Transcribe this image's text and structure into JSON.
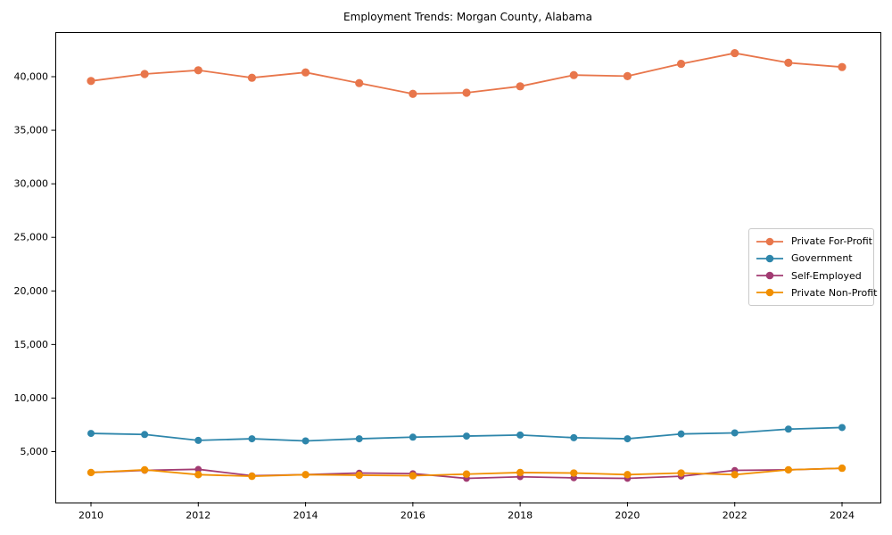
{
  "figure": {
    "title": "Employment Trends: Morgan County, Alabama",
    "background": "#ffffff"
  },
  "legend": {
    "position": "center-right",
    "items": [
      {
        "label": "Private For-Profit",
        "color": "#E8764B"
      },
      {
        "label": "Government",
        "color": "#2E86AB"
      },
      {
        "label": "Self-Employed",
        "color": "#A23B72"
      },
      {
        "label": "Private Non-Profit",
        "color": "#F18F01"
      }
    ]
  },
  "chart_data": {
    "type": "line",
    "title": "Employment Trends: Morgan County, Alabama",
    "xlabel": "",
    "ylabel": "",
    "grid": false,
    "legend_position": "center right",
    "x": [
      2010,
      2011,
      2012,
      2013,
      2014,
      2015,
      2016,
      2017,
      2018,
      2019,
      2020,
      2021,
      2022,
      2023,
      2024
    ],
    "x_tick_labels": [
      "2010",
      "2012",
      "2014",
      "2016",
      "2018",
      "2020",
      "2022",
      "2024"
    ],
    "x_ticks": [
      2010,
      2012,
      2014,
      2016,
      2018,
      2020,
      2022,
      2024
    ],
    "y_ticks": [
      5000,
      10000,
      15000,
      20000,
      25000,
      30000,
      35000,
      40000
    ],
    "y_tick_labels": [
      "5,000",
      "10,000",
      "15,000",
      "20,000",
      "25,000",
      "30,000",
      "35,000",
      "40,000"
    ],
    "xlim": [
      2009.3,
      2024.7
    ],
    "ylim": [
      255,
      44160
    ],
    "series": [
      {
        "name": "Private For-Profit",
        "color": "#E8764B",
        "marker": "circle",
        "values": [
          39600,
          40250,
          40600,
          39900,
          40400,
          39400,
          38400,
          38500,
          39100,
          40150,
          40050,
          41200,
          42200,
          41300,
          40900
        ]
      },
      {
        "name": "Government",
        "color": "#2E86AB",
        "marker": "circle",
        "values": [
          6700,
          6600,
          6050,
          6200,
          6000,
          6200,
          6350,
          6450,
          6550,
          6300,
          6200,
          6650,
          6750,
          7100,
          7250
        ]
      },
      {
        "name": "Self-Employed",
        "color": "#A23B72",
        "marker": "circle",
        "values": [
          3050,
          3250,
          3350,
          2750,
          2850,
          3000,
          2950,
          2500,
          2650,
          2550,
          2500,
          2700,
          3250,
          3300,
          3450
        ]
      },
      {
        "name": "Private Non-Profit",
        "color": "#F18F01",
        "marker": "circle",
        "values": [
          3050,
          3300,
          2850,
          2700,
          2850,
          2800,
          2750,
          2900,
          3050,
          3000,
          2850,
          3000,
          2850,
          3300,
          3450
        ]
      }
    ]
  }
}
